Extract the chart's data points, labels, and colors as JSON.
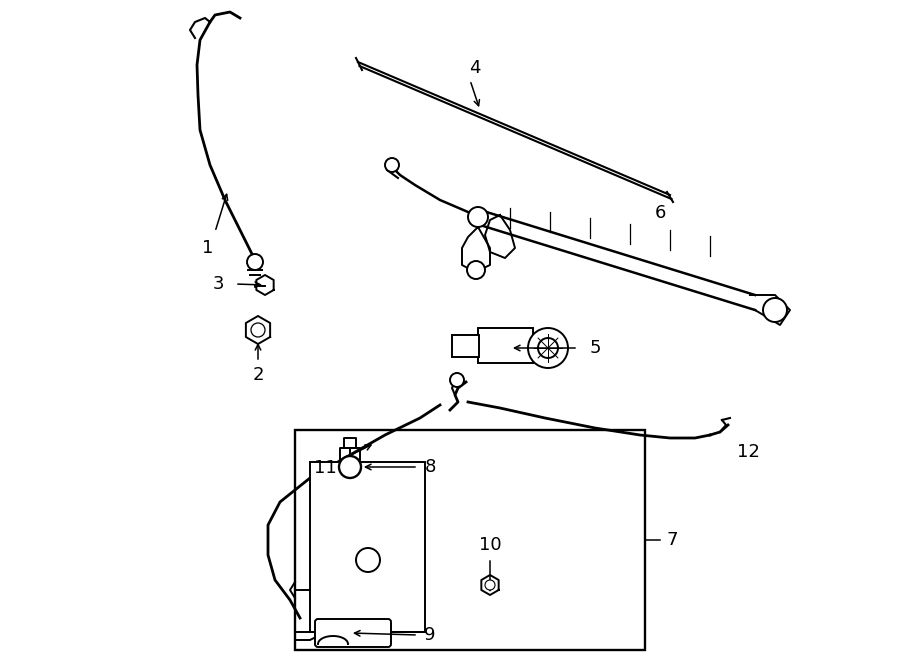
{
  "bg_color": "#ffffff",
  "line_color": "#000000",
  "lw": 1.4,
  "font_size": 13
}
